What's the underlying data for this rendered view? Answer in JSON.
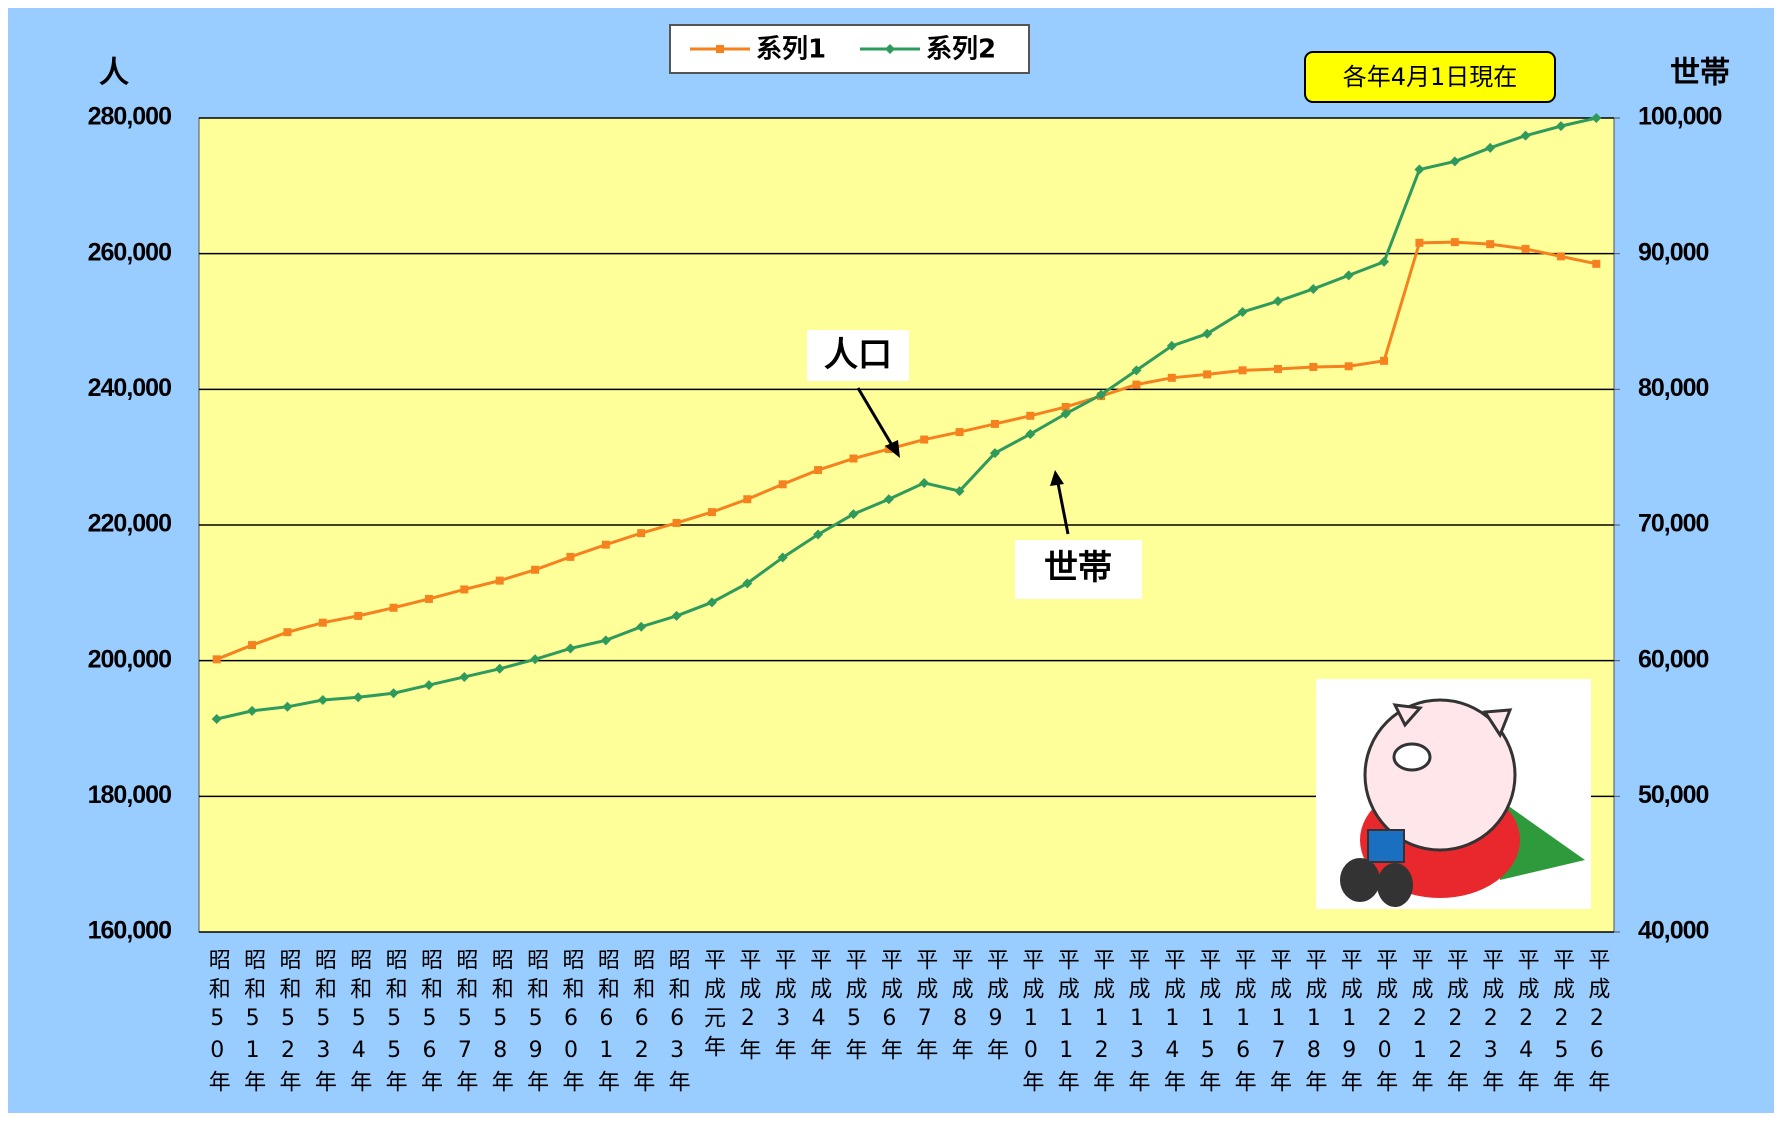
{
  "chart_data": {
    "type": "line",
    "legend": "top",
    "grid": true,
    "plot_background": "#ffff99",
    "y_label": "人",
    "y2_label": "世帯",
    "note": "各年4月1日現在",
    "annotations": [
      "人口",
      "世帯"
    ],
    "categories": [
      "昭和50年",
      "昭和51年",
      "昭和52年",
      "昭和53年",
      "昭和54年",
      "昭和55年",
      "昭和56年",
      "昭和57年",
      "昭和58年",
      "昭和59年",
      "昭和60年",
      "昭和61年",
      "昭和62年",
      "昭和63年",
      "平成元年",
      "平成2年",
      "平成3年",
      "平成4年",
      "平成5年",
      "平成6年",
      "平成7年",
      "平成8年",
      "平成9年",
      "平成10年",
      "平成11年",
      "平成12年",
      "平成13年",
      "平成14年",
      "平成15年",
      "平成16年",
      "平成17年",
      "平成18年",
      "平成19年",
      "平成20年",
      "平成21年",
      "平成22年",
      "平成23年",
      "平成24年",
      "平成25年",
      "平成26年"
    ],
    "series": [
      {
        "name": "系列1",
        "color": "#f5821f",
        "marker": "square",
        "axis": "y",
        "values": [
          200200,
          202300,
          204200,
          205600,
          206600,
          207800,
          209100,
          210500,
          211800,
          213400,
          215300,
          217100,
          218800,
          220300,
          221900,
          223800,
          226000,
          228100,
          229800,
          231200,
          232600,
          233700,
          234900,
          236100,
          237400,
          239000,
          240700,
          241700,
          242200,
          242800,
          243000,
          243300,
          243400,
          244200,
          261600,
          261700,
          261400,
          260700,
          259600,
          258500
        ]
      },
      {
        "name": "系列2",
        "color": "#2e9a5c",
        "marker": "diamond",
        "axis": "y2",
        "values": [
          55700,
          56300,
          56600,
          57100,
          57300,
          57600,
          58200,
          58800,
          59400,
          60100,
          60900,
          61500,
          62500,
          63300,
          64300,
          65700,
          67600,
          69300,
          70800,
          71900,
          73100,
          72500,
          75300,
          76700,
          78200,
          79600,
          81400,
          83200,
          84100,
          85700,
          86500,
          87400,
          88400,
          89400,
          96200,
          96800,
          97800,
          98700,
          99400,
          100000
        ]
      }
    ],
    "ylim": [
      160000,
      280000
    ],
    "yticks": [
      {
        "value": 160000,
        "label": "160,000"
      },
      {
        "value": 180000,
        "label": "180,000"
      },
      {
        "value": 200000,
        "label": "200,000"
      },
      {
        "value": 220000,
        "label": "220,000"
      },
      {
        "value": 240000,
        "label": "240,000"
      },
      {
        "value": 260000,
        "label": "260,000"
      },
      {
        "value": 280000,
        "label": "280,000"
      }
    ],
    "y2lim": [
      40000,
      100000
    ],
    "y2ticks": [
      {
        "value": 40000,
        "label": "40,000"
      },
      {
        "value": 50000,
        "label": "50,000"
      },
      {
        "value": 60000,
        "label": "60,000"
      },
      {
        "value": 70000,
        "label": "70,000"
      },
      {
        "value": 80000,
        "label": "80,000"
      },
      {
        "value": 90000,
        "label": "90,000"
      },
      {
        "value": 100000,
        "label": "100,000"
      }
    ]
  }
}
